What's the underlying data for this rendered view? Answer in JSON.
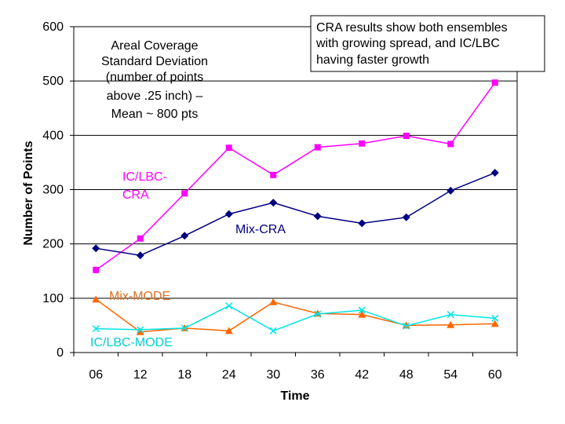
{
  "chart_data": {
    "type": "line",
    "xlabel": "Time",
    "ylabel": "Number of Points",
    "ylim": [
      0,
      600
    ],
    "yticks": [
      0,
      100,
      200,
      300,
      400,
      500,
      600
    ],
    "grid": true,
    "categories": [
      "06",
      "12",
      "18",
      "24",
      "30",
      "36",
      "42",
      "48",
      "54",
      "60"
    ],
    "annotation_left": [
      "Areal Coverage",
      "Standard Deviation",
      "(number of points",
      "above .25 inch) –",
      "Mean ~ 800 pts"
    ],
    "annotation_box": [
      "CRA results show both ensembles",
      "with growing spread, and IC/LBC",
      "having faster growth"
    ],
    "series": [
      {
        "name": "IC/LBC-CRA",
        "label_lines": [
          "IC/LBC-",
          "CRA"
        ],
        "color": "#ff00ff",
        "marker": "square",
        "values": [
          152,
          210,
          293,
          377,
          327,
          378,
          385,
          399,
          384,
          497
        ]
      },
      {
        "name": "Mix-CRA",
        "label_lines": [
          "Mix-CRA"
        ],
        "color": "#000080",
        "marker": "diamond",
        "values": [
          192,
          179,
          215,
          255,
          276,
          251,
          238,
          249,
          298,
          331
        ]
      },
      {
        "name": "Mix-MODE",
        "label_lines": [
          "Mix-MODE"
        ],
        "color": "#ff6600",
        "marker": "triangle",
        "values": [
          98,
          38,
          45,
          40,
          93,
          72,
          70,
          50,
          51,
          53
        ]
      },
      {
        "name": "IC/LBC-MODE",
        "label_lines": [
          "IC/LBC-MODE"
        ],
        "color": "#00e5e5",
        "marker": "x",
        "values": [
          44,
          42,
          45,
          86,
          40,
          71,
          78,
          49,
          70,
          63
        ]
      }
    ]
  }
}
